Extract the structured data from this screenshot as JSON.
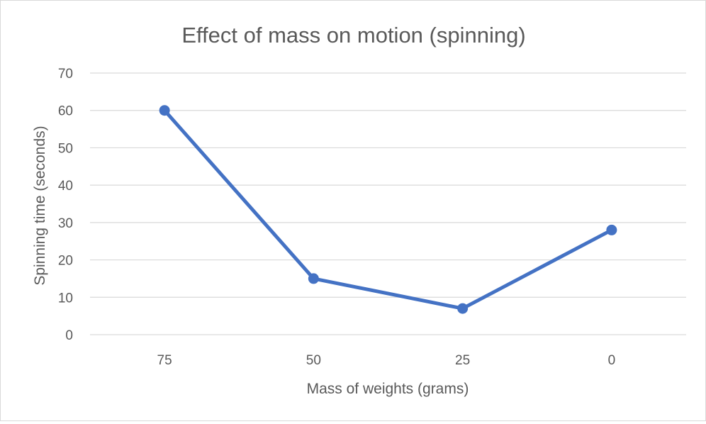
{
  "chart_data": {
    "type": "line",
    "title": "Effect of mass on motion (spinning)",
    "xlabel": "Mass of weights (grams)",
    "ylabel": "Spinning time (seconds)",
    "categories": [
      "75",
      "50",
      "25",
      "0"
    ],
    "series": [
      {
        "values": [
          60,
          15,
          7,
          28
        ],
        "color": "#4472c4"
      }
    ],
    "ylim": [
      0,
      70
    ],
    "yticks": [
      0,
      10,
      20,
      30,
      40,
      50,
      60,
      70
    ],
    "grid": true,
    "legend": "none",
    "colors": {
      "gridline": "#d9d9d9",
      "text": "#595959",
      "series": "#4472c4"
    }
  }
}
